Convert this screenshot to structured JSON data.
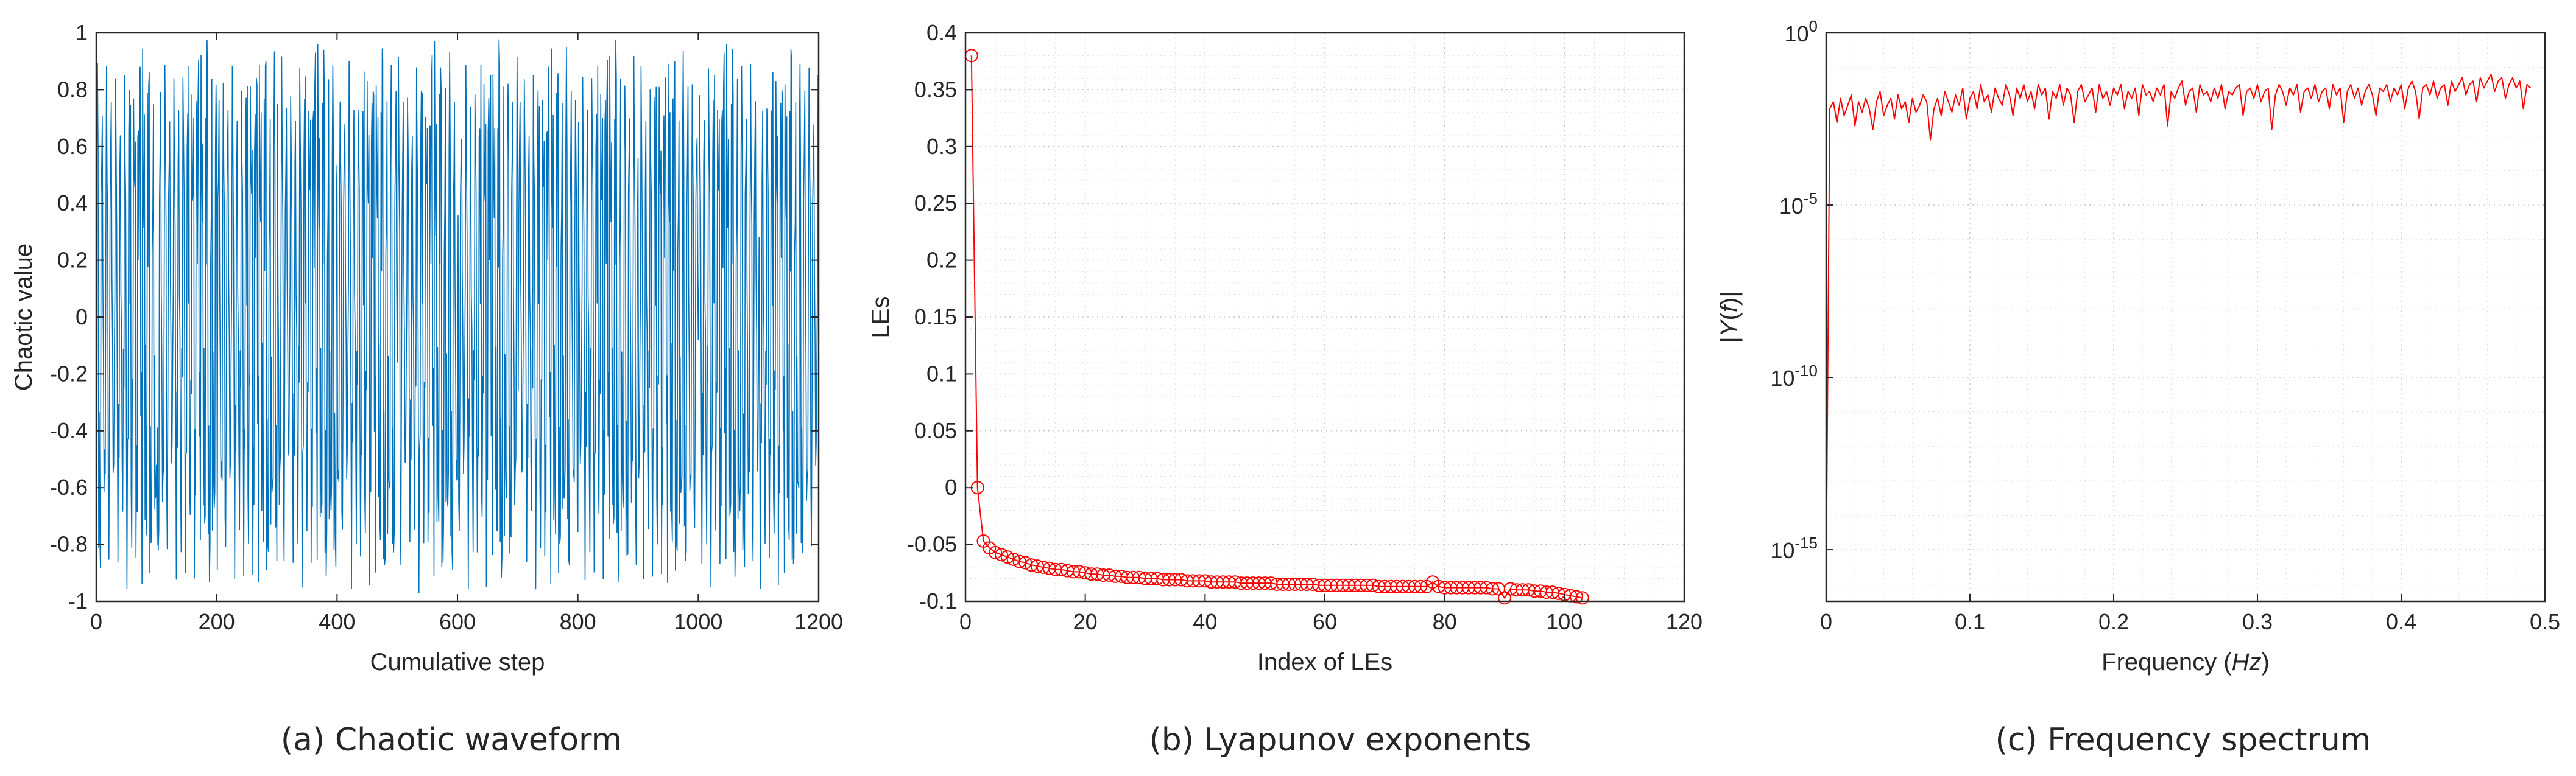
{
  "chart_data": [
    {
      "id": "a",
      "type": "line",
      "caption": "(a) Chaotic waveform",
      "title": "",
      "xlabel": "Cumulative step",
      "ylabel": "Chaotic value",
      "xlim": [
        0,
        1200
      ],
      "ylim": [
        -1,
        1
      ],
      "xticks": [
        0,
        200,
        400,
        600,
        800,
        1000,
        1200
      ],
      "yticks": [
        -1,
        -0.8,
        -0.6,
        -0.4,
        -0.2,
        0,
        0.2,
        0.4,
        0.6,
        0.8,
        1
      ],
      "grid": false,
      "color": "#0072bd",
      "series": [
        {
          "x_start": 1,
          "x_step": 1,
          "count": 1200,
          "values": [
            0.65,
            -0.42,
            0.88,
            -0.71,
            0.23,
            -0.95,
            0.54,
            -0.18,
            0.79,
            -0.63,
            0.12,
            -0.84,
            0.97,
            -0.36,
            0.41,
            -0.77,
            0.69,
            -0.05,
            -0.58,
            0.91,
            -0.27,
            0.33,
            -0.89,
            0.72,
            -0.49,
            0.16,
            -0.68,
            0.86,
            -0.12,
            0.58,
            -0.93,
            0.47,
            -0.31,
            0.81,
            -0.74,
            0.05,
            -0.52,
            0.95,
            -0.21,
            0.64,
            -0.87,
            0.38,
            -0.46,
            0.74,
            -0.66,
            0.19,
            -0.81,
            0.9,
            -0.39,
            0.52,
            -0.97,
            0.61,
            -0.14,
            0.77,
            -0.55,
            0.28,
            -0.9,
            0.83,
            -0.33,
            0.44,
            -0.72,
            0.67,
            -0.08,
            -0.62,
            0.93,
            -0.25,
            0.36,
            -0.85,
            0.7,
            -0.5,
            0.13,
            -0.79,
            0.89,
            -0.17,
            0.6,
            -0.94,
            0.45,
            -0.29,
            0.84,
            -0.69,
            0.09,
            -0.56,
            0.98,
            -0.23,
            0.62,
            -0.86,
            0.35,
            -0.48,
            0.76,
            -0.64,
            0.21,
            -0.83,
            0.92,
            -0.4,
            0.5,
            -0.96,
            0.59,
            -0.11,
            0.8,
            -0.57
          ]
        }
      ]
    },
    {
      "id": "b",
      "type": "line",
      "caption": "(b) Lyapunov exponents",
      "title": "",
      "xlabel": "Index of LEs",
      "ylabel": "LEs",
      "xlim": [
        0,
        120
      ],
      "ylim": [
        -0.1,
        0.4
      ],
      "xticks": [
        0,
        20,
        40,
        60,
        80,
        100,
        120
      ],
      "yticks": [
        -0.1,
        -0.05,
        0,
        0.05,
        0.1,
        0.15,
        0.2,
        0.25,
        0.3,
        0.35,
        0.4
      ],
      "grid": true,
      "color": "#ff0000",
      "marker": "circle",
      "series": [
        {
          "x_start": 1,
          "values": [
            0.38,
            0.0,
            -0.047,
            -0.053,
            -0.057,
            -0.059,
            -0.061,
            -0.063,
            -0.065,
            -0.066,
            -0.068,
            -0.069,
            -0.07,
            -0.071,
            -0.072,
            -0.072,
            -0.073,
            -0.074,
            -0.074,
            -0.075,
            -0.076,
            -0.076,
            -0.077,
            -0.077,
            -0.078,
            -0.078,
            -0.079,
            -0.079,
            -0.079,
            -0.08,
            -0.08,
            -0.08,
            -0.081,
            -0.081,
            -0.081,
            -0.081,
            -0.082,
            -0.082,
            -0.082,
            -0.082,
            -0.083,
            -0.083,
            -0.083,
            -0.083,
            -0.083,
            -0.084,
            -0.084,
            -0.084,
            -0.084,
            -0.084,
            -0.084,
            -0.085,
            -0.085,
            -0.085,
            -0.085,
            -0.085,
            -0.085,
            -0.085,
            -0.086,
            -0.086,
            -0.086,
            -0.086,
            -0.086,
            -0.086,
            -0.086,
            -0.086,
            -0.086,
            -0.086,
            -0.087,
            -0.087,
            -0.087,
            -0.087,
            -0.087,
            -0.087,
            -0.087,
            -0.087,
            -0.087,
            -0.083,
            -0.087,
            -0.088,
            -0.088,
            -0.088,
            -0.088,
            -0.088,
            -0.088,
            -0.088,
            -0.088,
            -0.089,
            -0.089,
            -0.097,
            -0.089,
            -0.09,
            -0.09,
            -0.09,
            -0.091,
            -0.091,
            -0.092,
            -0.092,
            -0.093,
            -0.094,
            -0.095,
            -0.096,
            -0.097
          ]
        }
      ]
    },
    {
      "id": "c",
      "type": "line",
      "caption": "(c) Frequency spectrum",
      "title": "",
      "xlabel": "Frequency (Hz)",
      "xlabel_parts": [
        "Frequency (",
        "Hz",
        ")"
      ],
      "ylabel": "|Y(f)|",
      "ylabel_parts": [
        "|",
        "Y",
        "(",
        "f",
        ")|"
      ],
      "xlim": [
        0,
        0.5
      ],
      "ylim_log10": [
        -16.5,
        0
      ],
      "yscale": "log",
      "xticks": [
        0,
        0.1,
        0.2,
        0.3,
        0.4,
        0.5
      ],
      "xtick_labels": [
        "0",
        "0.1",
        "0.2",
        "0.3",
        "0.4",
        "0.5"
      ],
      "ytick_exponents": [
        -15,
        -10,
        -5,
        0
      ],
      "ytick_base": "10",
      "grid": true,
      "color": "#ff0000",
      "series": [
        {
          "x_start": 0.0025,
          "x_step": 0.0025,
          "first_value": 1e-16,
          "values_log10": [
            -2.2,
            -2.0,
            -2.6,
            -1.9,
            -2.4,
            -2.1,
            -1.8,
            -2.7,
            -2.0,
            -2.3,
            -1.9,
            -2.2,
            -2.8,
            -2.0,
            -1.7,
            -2.4,
            -2.1,
            -1.9,
            -2.5,
            -1.8,
            -2.2,
            -2.0,
            -2.6,
            -1.9,
            -2.3,
            -2.1,
            -1.8,
            -2.0,
            -3.1,
            -2.2,
            -1.9,
            -2.4,
            -1.7,
            -2.0,
            -2.3,
            -1.8,
            -2.1,
            -1.6,
            -2.5,
            -1.9,
            -1.7,
            -2.2,
            -1.5,
            -2.0,
            -1.8,
            -2.3,
            -1.6,
            -1.9,
            -2.1,
            -1.5,
            -1.8,
            -2.4,
            -1.6,
            -1.9,
            -1.5,
            -2.0,
            -1.7,
            -2.2,
            -1.5,
            -1.8,
            -1.6,
            -2.5,
            -1.7,
            -1.9,
            -1.5,
            -2.1,
            -1.6,
            -1.8,
            -2.6,
            -1.7,
            -1.5,
            -2.0,
            -1.8,
            -1.6,
            -2.3,
            -1.5,
            -1.9,
            -1.7,
            -2.1,
            -1.6,
            -1.8,
            -1.5,
            -2.2,
            -1.7,
            -1.9,
            -1.6,
            -2.4,
            -1.5,
            -1.8,
            -1.7,
            -2.0,
            -1.6,
            -1.8,
            -1.5,
            -2.7,
            -1.7,
            -1.9,
            -1.6,
            -1.4,
            -2.1,
            -1.7,
            -1.6,
            -2.3,
            -1.5,
            -1.8,
            -1.7,
            -2.0,
            -1.6,
            -1.9,
            -1.5,
            -2.2,
            -1.7,
            -1.8,
            -1.6,
            -1.5,
            -2.4,
            -1.7,
            -1.6,
            -1.9,
            -1.5,
            -2.0,
            -1.7,
            -1.6,
            -2.8,
            -1.8,
            -1.5,
            -1.7,
            -2.1,
            -1.6,
            -1.8,
            -1.5,
            -2.3,
            -1.7,
            -1.6,
            -1.9,
            -1.5,
            -2.0,
            -1.7,
            -1.6,
            -2.2,
            -1.5,
            -1.8,
            -1.6,
            -2.6,
            -1.7,
            -1.5,
            -1.9,
            -1.6,
            -2.1,
            -1.7,
            -1.5,
            -1.8,
            -2.4,
            -1.6,
            -1.7,
            -1.5,
            -2.0,
            -1.6,
            -1.8,
            -1.5,
            -2.2,
            -1.6,
            -1.4,
            -1.7,
            -2.5,
            -1.6,
            -1.5,
            -1.8,
            -1.4,
            -1.9,
            -1.6,
            -1.5,
            -2.1,
            -1.4,
            -1.7,
            -1.5,
            -1.3,
            -1.8,
            -1.5,
            -1.4,
            -2.0,
            -1.3,
            -1.6,
            -1.4,
            -1.2,
            -1.7,
            -1.4,
            -1.3,
            -1.9,
            -1.5,
            -1.3,
            -1.6,
            -1.4,
            -2.2,
            -1.5,
            -1.6
          ]
        }
      ]
    }
  ]
}
